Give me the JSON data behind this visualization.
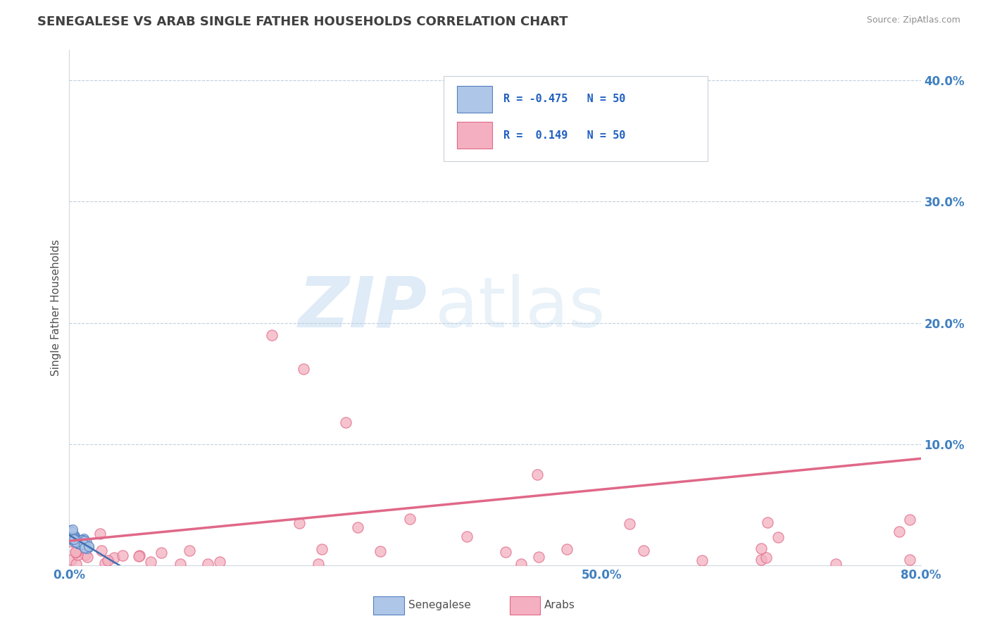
{
  "title": "SENEGALESE VS ARAB SINGLE FATHER HOUSEHOLDS CORRELATION CHART",
  "source": "Source: ZipAtlas.com",
  "ylabel": "Single Father Households",
  "xlim": [
    0.0,
    0.8
  ],
  "ylim": [
    0.0,
    0.425
  ],
  "yticks": [
    0.0,
    0.1,
    0.2,
    0.3,
    0.4
  ],
  "ytick_labels": [
    "",
    "10.0%",
    "20.0%",
    "30.0%",
    "40.0%"
  ],
  "xticks": [
    0.0,
    0.1,
    0.2,
    0.3,
    0.4,
    0.5,
    0.6,
    0.7,
    0.8
  ],
  "xtick_labels": [
    "0.0%",
    "",
    "",
    "",
    "",
    "50.0%",
    "",
    "",
    "80.0%"
  ],
  "senegalese_color": "#aec6e8",
  "arab_color": "#f4b0c0",
  "senegalese_edge": "#5580c0",
  "arab_edge": "#e06888",
  "trend_senegalese_color": "#4070b0",
  "trend_arab_color": "#e06888",
  "R_senegalese": -0.475,
  "R_arab": 0.149,
  "N_senegalese": 50,
  "N_arab": 50,
  "watermark_zip": "ZIP",
  "watermark_atlas": "atlas",
  "background_color": "#ffffff",
  "grid_color": "#c0cfe0",
  "title_color": "#404040",
  "axis_tick_color": "#4080c0",
  "legend_text_color": "#2060c0",
  "legend_box_color_senegalese": "#aec6e8",
  "legend_box_color_arab": "#f4b0c0",
  "legend_box_edge_senegalese": "#5580c0",
  "legend_box_edge_arab": "#e06888"
}
